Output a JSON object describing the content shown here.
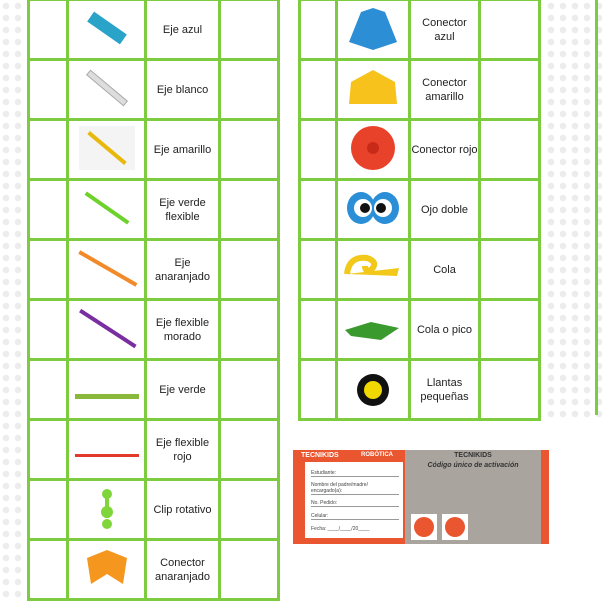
{
  "colors": {
    "grid": "#7dcb3e",
    "brand": "#e9562f"
  },
  "left_table": [
    {
      "label": "Eje azul",
      "icon": "blue-axle-icon"
    },
    {
      "label": "Eje blanco",
      "icon": "white-axle-icon"
    },
    {
      "label": "Eje amarillo",
      "icon": "yellow-axle-icon"
    },
    {
      "label": "Eje verde flexible",
      "icon": "green-flexible-axle-icon"
    },
    {
      "label": "Eje anaranjado",
      "icon": "orange-axle-icon"
    },
    {
      "label": "Eje flexible morado",
      "icon": "purple-flexible-axle-icon"
    },
    {
      "label": "Eje verde",
      "icon": "green-axle-icon"
    },
    {
      "label": "Eje flexible rojo",
      "icon": "red-flexible-axle-icon"
    },
    {
      "label": "Clip rotativo",
      "icon": "rotating-clip-icon"
    },
    {
      "label": "Conector anaranjado",
      "icon": "orange-connector-icon"
    }
  ],
  "right_table": [
    {
      "label": "Conector azul",
      "icon": "blue-connector-icon"
    },
    {
      "label": "Conector amarillo",
      "icon": "yellow-connector-icon"
    },
    {
      "label": "Conector rojo",
      "icon": "red-connector-icon"
    },
    {
      "label": "Ojo doble",
      "icon": "double-eye-icon"
    },
    {
      "label": "Cola",
      "icon": "tail-icon"
    },
    {
      "label": "Cola o pico",
      "icon": "beak-icon"
    },
    {
      "label": "Llantas pequeñas",
      "icon": "small-wheels-icon"
    }
  ],
  "card": {
    "brand": "TECNIKIDS",
    "subject": "ROBÓTICA",
    "title": "Código único de activación",
    "fields": [
      "Estudiante:",
      "Nombre del padre/madre/ encargado(a):",
      "No. Pedido:",
      "Celular:",
      "Fecha: ____/____/20____"
    ]
  }
}
